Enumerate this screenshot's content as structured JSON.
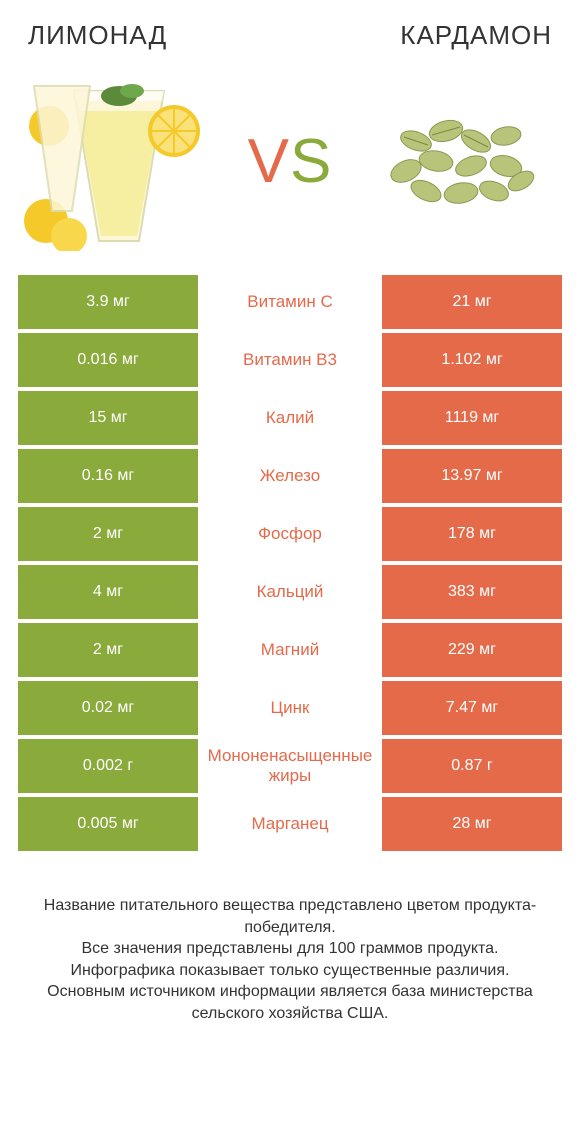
{
  "colors": {
    "left_product": "#8aaa3b",
    "right_product": "#e46a4a",
    "text": "#333333",
    "cell_text": "#ffffff",
    "background": "#ffffff"
  },
  "header": {
    "left_title": "ЛИМОНАД",
    "right_title": "КАРДАМОН",
    "vs_v": "V",
    "vs_s": "S"
  },
  "rows": [
    {
      "name": "Витамин C",
      "left": "3.9 мг",
      "right": "21 мг",
      "winner": "right"
    },
    {
      "name": "Витамин B3",
      "left": "0.016 мг",
      "right": "1.102 мг",
      "winner": "right"
    },
    {
      "name": "Калий",
      "left": "15 мг",
      "right": "1119 мг",
      "winner": "right"
    },
    {
      "name": "Железо",
      "left": "0.16 мг",
      "right": "13.97 мг",
      "winner": "right"
    },
    {
      "name": "Фосфор",
      "left": "2 мг",
      "right": "178 мг",
      "winner": "right"
    },
    {
      "name": "Кальций",
      "left": "4 мг",
      "right": "383 мг",
      "winner": "right"
    },
    {
      "name": "Магний",
      "left": "2 мг",
      "right": "229 мг",
      "winner": "right"
    },
    {
      "name": "Цинк",
      "left": "0.02 мг",
      "right": "7.47 мг",
      "winner": "right"
    },
    {
      "name": "Мононенасыщенные жиры",
      "left": "0.002 г",
      "right": "0.87 г",
      "winner": "right"
    },
    {
      "name": "Марганец",
      "left": "0.005 мг",
      "right": "28 мг",
      "winner": "right"
    }
  ],
  "footer": {
    "line1": "Название питательного вещества представлено цветом продукта-победителя.",
    "line2": "Все значения представлены для 100 граммов продукта.",
    "line3": "Инфографика показывает только существенные различия.",
    "line4": "Основным источником информации является база министерства сельского хозяйства США."
  }
}
